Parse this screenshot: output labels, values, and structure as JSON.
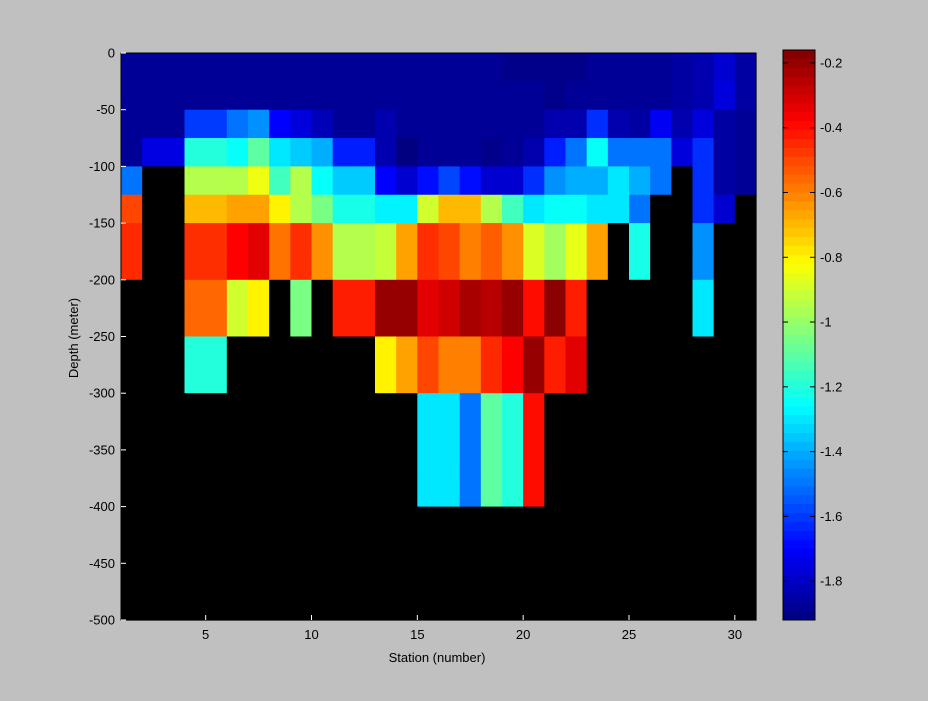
{
  "chart_data": {
    "type": "heatmap",
    "title": "",
    "xlabel": "Station (number)",
    "ylabel": "Depth (meter)",
    "xlim": [
      1,
      31
    ],
    "ylim": [
      -500,
      0
    ],
    "x_ticks": [
      5,
      10,
      15,
      20,
      25,
      30
    ],
    "y_ticks": [
      0,
      -50,
      -100,
      -150,
      -200,
      -250,
      -300,
      -350,
      -400,
      -450,
      -500
    ],
    "colorbar": {
      "range": [
        -1.92,
        -0.16
      ],
      "ticks": [
        -0.2,
        -0.4,
        -0.6,
        -0.8,
        -1,
        -1.2,
        -1.4,
        -1.6,
        -1.8
      ],
      "colormap": "jet"
    },
    "missing_color": "#000000",
    "x": [
      1,
      2,
      3,
      4,
      5,
      6,
      7,
      8,
      9,
      10,
      11,
      12,
      13,
      14,
      15,
      16,
      17,
      18,
      19,
      20,
      21,
      22,
      23,
      24,
      25,
      26,
      27,
      28,
      29,
      30
    ],
    "depths": [
      0,
      -25,
      -50,
      -75,
      -100,
      -125,
      -150,
      -175,
      -200,
      -225,
      -250,
      -275,
      -300,
      -325,
      -350,
      -375,
      -400,
      -425,
      -450,
      -475
    ],
    "rows": [
      [
        -1.88,
        -1.88,
        -1.88,
        -1.88,
        -1.88,
        -1.88,
        -1.88,
        -1.88,
        -1.88,
        -1.88,
        -1.88,
        -1.88,
        -1.88,
        -1.88,
        -1.88,
        -1.88,
        -1.88,
        -1.88,
        -1.9,
        -1.9,
        -1.9,
        -1.9,
        -1.88,
        -1.88,
        -1.88,
        -1.88,
        -1.86,
        -1.84,
        -1.78,
        -1.86
      ],
      [
        -1.88,
        -1.88,
        -1.88,
        -1.88,
        -1.88,
        -1.88,
        -1.88,
        -1.88,
        -1.88,
        -1.88,
        -1.88,
        -1.88,
        -1.88,
        -1.88,
        -1.88,
        -1.88,
        -1.88,
        -1.88,
        -1.88,
        -1.88,
        -1.9,
        -1.88,
        -1.88,
        -1.88,
        -1.88,
        -1.88,
        -1.86,
        -1.84,
        -1.76,
        -1.86
      ],
      [
        -1.88,
        -1.88,
        -1.88,
        -1.6,
        -1.6,
        -1.5,
        -1.45,
        -1.7,
        -1.76,
        -1.82,
        -1.88,
        -1.88,
        -1.84,
        -1.88,
        -1.88,
        -1.88,
        -1.88,
        -1.88,
        -1.88,
        -1.88,
        -1.84,
        -1.84,
        -1.62,
        -1.84,
        -1.86,
        -1.72,
        -1.84,
        -1.76,
        -1.86,
        -1.88
      ],
      [
        -1.88,
        -1.75,
        -1.75,
        -1.2,
        -1.2,
        -1.25,
        -1.1,
        -1.3,
        -1.35,
        -1.4,
        -1.65,
        -1.65,
        -1.84,
        -1.92,
        -1.88,
        -1.88,
        -1.88,
        -1.9,
        -1.88,
        -1.84,
        -1.65,
        -1.5,
        -1.25,
        -1.5,
        -1.5,
        -1.5,
        -1.76,
        -1.62,
        -1.86,
        -1.88
      ],
      [
        -1.5,
        null,
        null,
        -0.95,
        -0.95,
        -0.95,
        -0.85,
        -1.15,
        -0.95,
        -1.25,
        -1.35,
        -1.35,
        -1.7,
        -1.78,
        -1.68,
        -1.58,
        -1.68,
        -1.78,
        -1.78,
        -1.62,
        -1.45,
        -1.4,
        -1.4,
        -1.3,
        -1.4,
        -1.5,
        null,
        -1.62,
        -1.86,
        -1.88
      ],
      [
        -0.5,
        null,
        null,
        -0.7,
        -0.7,
        -0.66,
        -0.66,
        -0.8,
        -0.95,
        -1.05,
        -1.22,
        -1.22,
        -1.28,
        -1.28,
        -0.9,
        -0.7,
        -0.7,
        -0.95,
        -1.15,
        -1.3,
        -1.25,
        -1.25,
        -1.3,
        -1.3,
        -1.5,
        null,
        null,
        -1.62,
        -1.78,
        null
      ],
      [
        -0.45,
        null,
        null,
        -0.46,
        -0.46,
        -0.38,
        -0.33,
        -0.58,
        -0.46,
        -0.63,
        -0.95,
        -0.95,
        -0.92,
        -0.66,
        -0.46,
        -0.5,
        -0.6,
        -0.54,
        -0.63,
        -0.88,
        -0.98,
        -0.86,
        -0.66,
        null,
        -1.22,
        null,
        null,
        -1.45,
        null,
        null
      ],
      [
        -0.45,
        null,
        null,
        -0.46,
        -0.46,
        -0.38,
        -0.33,
        -0.58,
        -0.46,
        -0.63,
        -0.95,
        -0.95,
        -0.92,
        -0.66,
        -0.46,
        -0.5,
        -0.6,
        -0.54,
        -0.63,
        -0.88,
        -0.98,
        -0.86,
        -0.66,
        null,
        -1.22,
        null,
        null,
        -1.45,
        null,
        null
      ],
      [
        null,
        null,
        null,
        -0.56,
        -0.56,
        -0.9,
        -0.8,
        null,
        -1.05,
        null,
        -0.43,
        -0.43,
        -0.2,
        -0.2,
        -0.33,
        -0.3,
        -0.23,
        -0.26,
        -0.2,
        -0.4,
        -0.18,
        -0.43,
        null,
        null,
        null,
        null,
        null,
        -1.3,
        null,
        null
      ],
      [
        null,
        null,
        null,
        -0.56,
        -0.56,
        -0.9,
        -0.8,
        null,
        -1.05,
        null,
        -0.43,
        -0.43,
        -0.2,
        -0.2,
        -0.33,
        -0.3,
        -0.23,
        -0.26,
        -0.2,
        -0.4,
        -0.18,
        -0.43,
        null,
        null,
        null,
        null,
        null,
        -1.3,
        null,
        null
      ],
      [
        null,
        null,
        null,
        -1.2,
        -1.2,
        null,
        null,
        null,
        null,
        null,
        null,
        null,
        -0.8,
        -0.66,
        -0.5,
        -0.6,
        -0.6,
        -0.45,
        -0.38,
        -0.2,
        -0.43,
        -0.33,
        null,
        null,
        null,
        null,
        null,
        null,
        null,
        null
      ],
      [
        null,
        null,
        null,
        -1.2,
        -1.2,
        null,
        null,
        null,
        null,
        null,
        null,
        null,
        -0.8,
        -0.66,
        -0.5,
        -0.6,
        -0.6,
        -0.45,
        -0.38,
        -0.2,
        -0.43,
        -0.33,
        null,
        null,
        null,
        null,
        null,
        null,
        null,
        null
      ],
      [
        null,
        null,
        null,
        null,
        null,
        null,
        null,
        null,
        null,
        null,
        null,
        null,
        null,
        null,
        -1.3,
        -1.3,
        -1.5,
        -1.1,
        -1.2,
        -0.4,
        null,
        null,
        null,
        null,
        null,
        null,
        null,
        null,
        null,
        null
      ],
      [
        null,
        null,
        null,
        null,
        null,
        null,
        null,
        null,
        null,
        null,
        null,
        null,
        null,
        null,
        -1.3,
        -1.3,
        -1.5,
        -1.1,
        -1.2,
        -0.4,
        null,
        null,
        null,
        null,
        null,
        null,
        null,
        null,
        null,
        null
      ],
      [
        null,
        null,
        null,
        null,
        null,
        null,
        null,
        null,
        null,
        null,
        null,
        null,
        null,
        null,
        -1.3,
        -1.3,
        -1.5,
        -1.1,
        -1.2,
        -0.4,
        null,
        null,
        null,
        null,
        null,
        null,
        null,
        null,
        null,
        null
      ],
      [
        null,
        null,
        null,
        null,
        null,
        null,
        null,
        null,
        null,
        null,
        null,
        null,
        null,
        null,
        -1.3,
        -1.3,
        -1.5,
        -1.1,
        -1.2,
        -0.4,
        null,
        null,
        null,
        null,
        null,
        null,
        null,
        null,
        null,
        null
      ],
      [
        null,
        null,
        null,
        null,
        null,
        null,
        null,
        null,
        null,
        null,
        null,
        null,
        null,
        null,
        null,
        null,
        null,
        null,
        null,
        null,
        null,
        null,
        null,
        null,
        null,
        null,
        null,
        null,
        null,
        null
      ],
      [
        null,
        null,
        null,
        null,
        null,
        null,
        null,
        null,
        null,
        null,
        null,
        null,
        null,
        null,
        null,
        null,
        null,
        null,
        null,
        null,
        null,
        null,
        null,
        null,
        null,
        null,
        null,
        null,
        null,
        null
      ],
      [
        null,
        null,
        null,
        null,
        null,
        null,
        null,
        null,
        null,
        null,
        null,
        null,
        null,
        null,
        null,
        null,
        null,
        null,
        null,
        null,
        null,
        null,
        null,
        null,
        null,
        null,
        null,
        null,
        null,
        null
      ],
      [
        null,
        null,
        null,
        null,
        null,
        null,
        null,
        null,
        null,
        null,
        null,
        null,
        null,
        null,
        null,
        null,
        null,
        null,
        null,
        null,
        null,
        null,
        null,
        null,
        null,
        null,
        null,
        null,
        null,
        null
      ]
    ]
  }
}
